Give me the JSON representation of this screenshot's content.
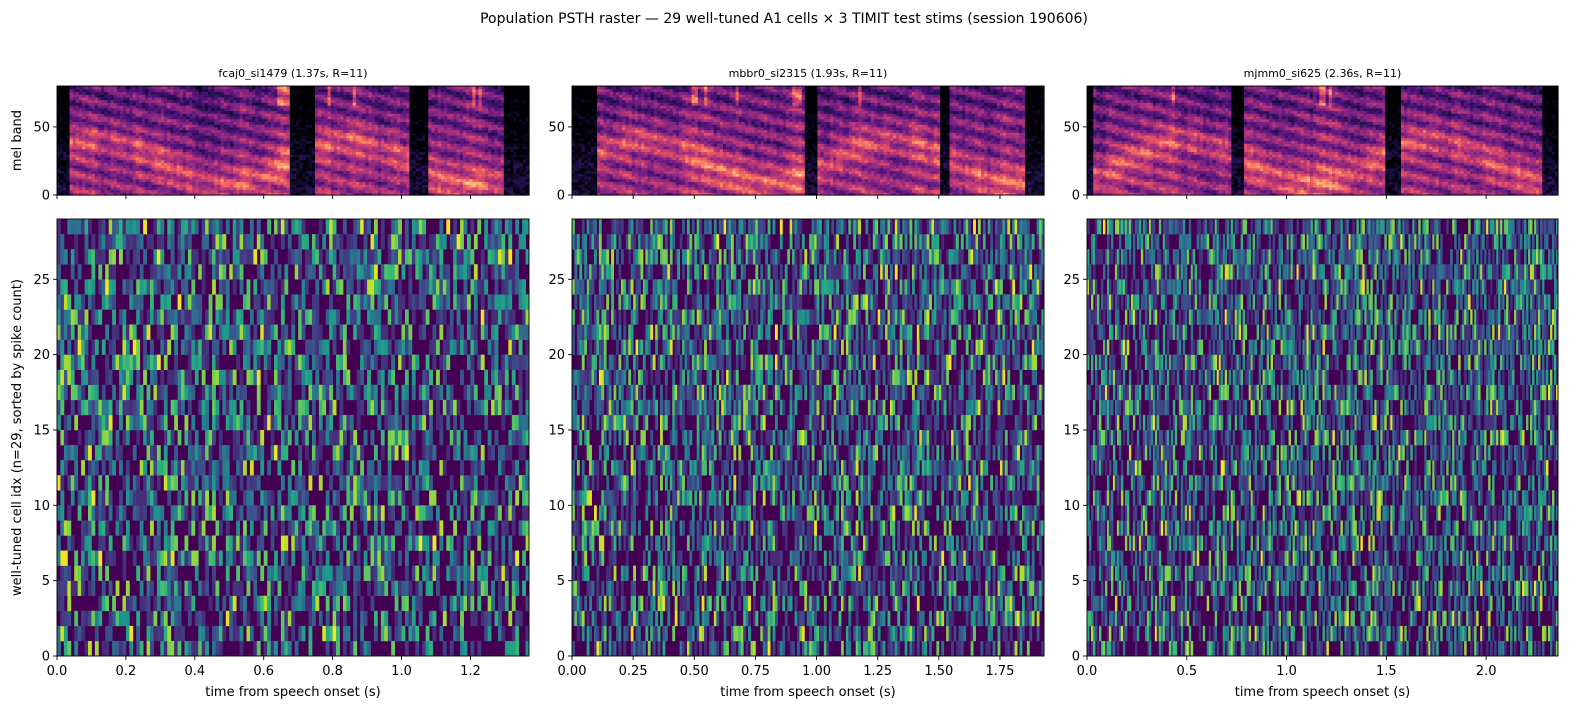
{
  "figure": {
    "title": "Population PSTH raster — 29 well-tuned A1 cells × 3 TIMIT test stims (session 190606)"
  },
  "chart_data": [
    {
      "type": "heatmap",
      "panel": "spectrogram",
      "title": "fcaj0_si1479  (1.37s, R=11)",
      "ylabel": "mel band",
      "xlim": [
        0,
        1.37
      ],
      "ylim": [
        0,
        80
      ],
      "yticks": [
        0,
        50
      ],
      "colormap": "magma",
      "silent_intervals_s": [
        [
          0.0,
          0.04
        ],
        [
          0.68,
          0.75
        ],
        [
          1.02,
          1.08
        ],
        [
          1.3,
          1.37
        ]
      ]
    },
    {
      "type": "heatmap",
      "panel": "spectrogram",
      "title": "mbbr0_si2315  (1.93s, R=11)",
      "ylabel": "",
      "xlim": [
        0,
        1.93
      ],
      "ylim": [
        0,
        80
      ],
      "yticks": [
        0,
        50
      ],
      "colormap": "magma",
      "silent_intervals_s": [
        [
          0.0,
          0.1
        ],
        [
          0.95,
          1.0
        ],
        [
          1.5,
          1.55
        ],
        [
          1.85,
          1.93
        ]
      ]
    },
    {
      "type": "heatmap",
      "panel": "spectrogram",
      "title": "mjmm0_si625  (2.36s, R=11)",
      "ylabel": "",
      "xlim": [
        0,
        2.36
      ],
      "ylim": [
        0,
        80
      ],
      "yticks": [
        0,
        50
      ],
      "colormap": "magma",
      "silent_intervals_s": [
        [
          0.0,
          0.03
        ],
        [
          0.72,
          0.78
        ],
        [
          1.5,
          1.58
        ],
        [
          2.28,
          2.36
        ]
      ]
    },
    {
      "type": "heatmap",
      "panel": "raster",
      "stimulus": "fcaj0_si1479",
      "xlabel": "time from speech onset (s)",
      "ylabel": "well-tuned cell idx (n=29, sorted by spike count)",
      "xlim": [
        0,
        1.37
      ],
      "ylim": [
        0,
        29
      ],
      "xticks": [
        0.0,
        0.2,
        0.4,
        0.6,
        0.8,
        1.0,
        1.2
      ],
      "xtick_labels": [
        "0.0",
        "0.2",
        "0.4",
        "0.6",
        "0.8",
        "1.0",
        "1.2"
      ],
      "yticks": [
        0,
        5,
        10,
        15,
        20,
        25
      ],
      "n_cells": 29,
      "colormap": "viridis"
    },
    {
      "type": "heatmap",
      "panel": "raster",
      "stimulus": "mbbr0_si2315",
      "xlabel": "time from speech onset (s)",
      "ylabel": "",
      "xlim": [
        0,
        1.93
      ],
      "ylim": [
        0,
        29
      ],
      "xticks": [
        0.0,
        0.25,
        0.5,
        0.75,
        1.0,
        1.25,
        1.5,
        1.75
      ],
      "xtick_labels": [
        "0.00",
        "0.25",
        "0.50",
        "0.75",
        "1.00",
        "1.25",
        "1.50",
        "1.75"
      ],
      "yticks": [
        0,
        5,
        10,
        15,
        20,
        25
      ],
      "n_cells": 29,
      "colormap": "viridis"
    },
    {
      "type": "heatmap",
      "panel": "raster",
      "stimulus": "mjmm0_si625",
      "xlabel": "time from speech onset (s)",
      "ylabel": "",
      "xlim": [
        0,
        2.36
      ],
      "ylim": [
        0,
        29
      ],
      "xticks": [
        0.0,
        0.5,
        1.0,
        1.5,
        2.0
      ],
      "xtick_labels": [
        "0.0",
        "0.5",
        "1.0",
        "1.5",
        "2.0"
      ],
      "yticks": [
        0,
        5,
        10,
        15,
        20,
        25
      ],
      "n_cells": 29,
      "colormap": "viridis"
    }
  ]
}
